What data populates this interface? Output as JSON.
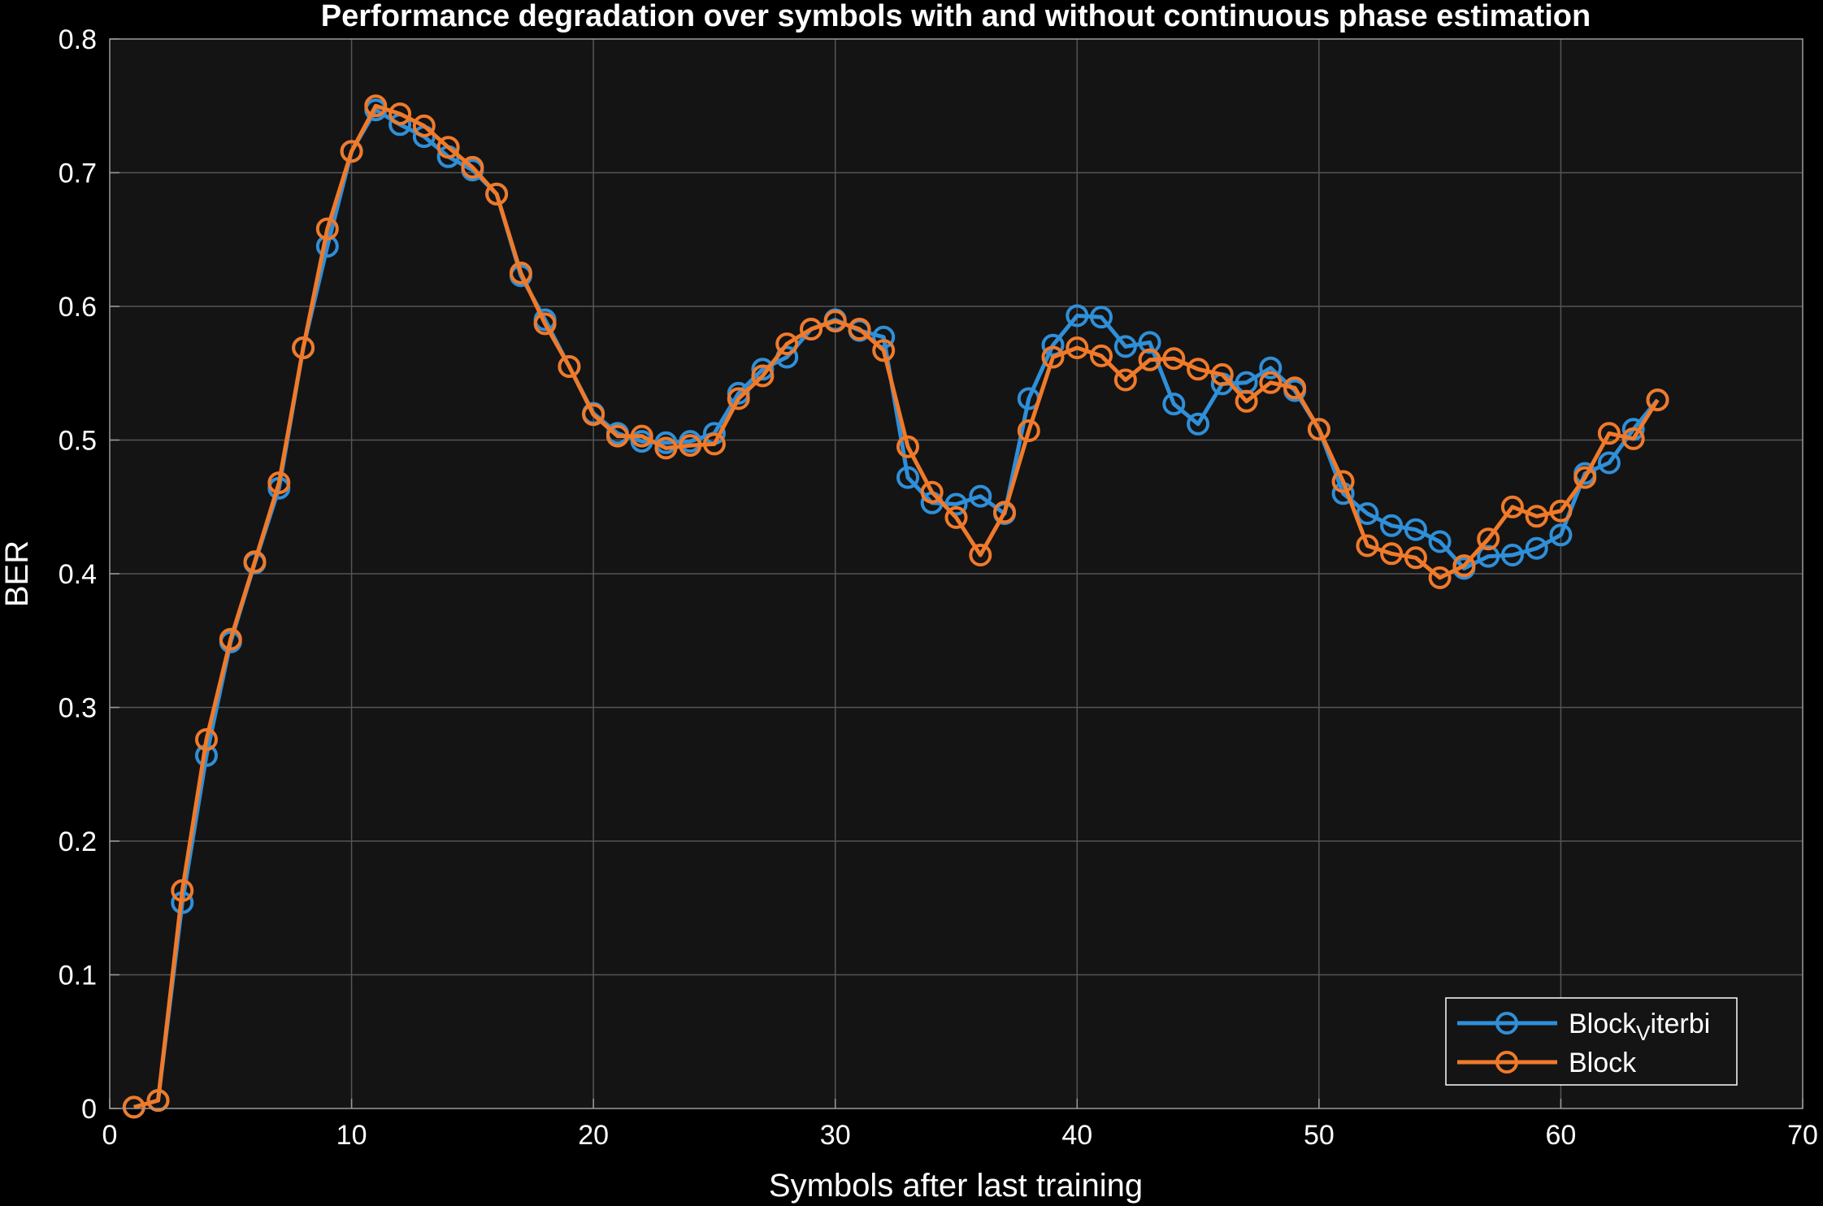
{
  "chart_data": {
    "type": "line",
    "title": "Performance degradation over symbols with and without continuous phase estimation",
    "xlabel": "Symbols after last training",
    "ylabel": "BER",
    "xlim": [
      0,
      70
    ],
    "ylim": [
      0,
      0.8
    ],
    "xticks": [
      0,
      10,
      20,
      30,
      40,
      50,
      60,
      70
    ],
    "yticks": [
      0,
      0.1,
      0.2,
      0.3,
      0.4,
      0.5,
      0.6,
      0.7,
      0.8
    ],
    "xtick_labels": [
      "0",
      "10",
      "20",
      "30",
      "40",
      "50",
      "60",
      "70"
    ],
    "ytick_labels": [
      "0",
      "0.1",
      "0.2",
      "0.3",
      "0.4",
      "0.5",
      "0.6",
      "0.7",
      "0.8"
    ],
    "grid": true,
    "legend_position": "bottom-right",
    "x": [
      1,
      2,
      3,
      4,
      5,
      6,
      7,
      8,
      9,
      10,
      11,
      12,
      13,
      14,
      15,
      16,
      17,
      18,
      19,
      20,
      21,
      22,
      23,
      24,
      25,
      26,
      27,
      28,
      29,
      30,
      31,
      32,
      33,
      34,
      35,
      36,
      37,
      38,
      39,
      40,
      41,
      42,
      43,
      44,
      45,
      46,
      47,
      48,
      49,
      50,
      51,
      52,
      53,
      54,
      55,
      56,
      57,
      58,
      59,
      60,
      61,
      62,
      63,
      64
    ],
    "series": [
      {
        "name": "Block",
        "name_subscript": "V",
        "name_suffix": "iterbi",
        "color": "#2f8fd8",
        "marker": "circle",
        "values": [
          0.001,
          0.006,
          0.154,
          0.264,
          0.349,
          0.408,
          0.464,
          0.569,
          0.645,
          0.716,
          0.747,
          0.736,
          0.727,
          0.712,
          0.702,
          0.684,
          0.623,
          0.59,
          0.555,
          0.52,
          0.505,
          0.499,
          0.498,
          0.499,
          0.505,
          0.535,
          0.553,
          0.562,
          0.583,
          0.59,
          0.582,
          0.577,
          0.472,
          0.453,
          0.452,
          0.458,
          0.445,
          0.531,
          0.571,
          0.593,
          0.592,
          0.57,
          0.573,
          0.527,
          0.512,
          0.542,
          0.543,
          0.554,
          0.537,
          0.508,
          0.46,
          0.445,
          0.436,
          0.433,
          0.424,
          0.404,
          0.413,
          0.414,
          0.419,
          0.429,
          0.475,
          0.483,
          0.508,
          0.53
        ]
      },
      {
        "name": "Block",
        "color": "#f07a2a",
        "marker": "circle",
        "values": [
          0.001,
          0.006,
          0.163,
          0.276,
          0.351,
          0.409,
          0.468,
          0.569,
          0.658,
          0.716,
          0.75,
          0.744,
          0.735,
          0.719,
          0.704,
          0.684,
          0.625,
          0.587,
          0.555,
          0.519,
          0.503,
          0.503,
          0.494,
          0.496,
          0.497,
          0.531,
          0.548,
          0.572,
          0.583,
          0.589,
          0.583,
          0.567,
          0.495,
          0.461,
          0.442,
          0.414,
          0.446,
          0.507,
          0.562,
          0.569,
          0.563,
          0.545,
          0.56,
          0.561,
          0.553,
          0.549,
          0.529,
          0.543,
          0.539,
          0.508,
          0.469,
          0.421,
          0.415,
          0.412,
          0.397,
          0.406,
          0.426,
          0.45,
          0.443,
          0.447,
          0.472,
          0.505,
          0.501,
          0.53
        ]
      }
    ]
  },
  "colors": {
    "background": "#000000",
    "plot_area": "#141414",
    "grid": "#555555",
    "text": "#ffffff"
  }
}
